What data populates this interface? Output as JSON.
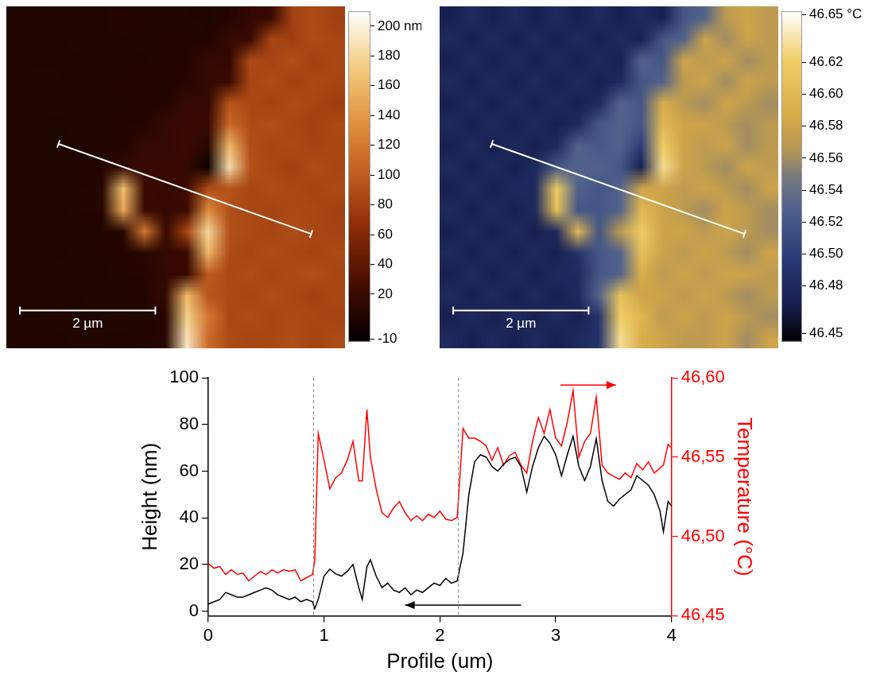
{
  "chart_data": [
    {
      "type": "heatmap",
      "color": "afmhot",
      "tick_labels": false,
      "xlim": [
        0,
        5
      ],
      "ylim": [
        0,
        5.17
      ],
      "colorbar_range": [
        -12,
        210
      ],
      "colorbar_ticks": [
        {
          "value": 200,
          "label": "200 nm"
        },
        180,
        160,
        140,
        120,
        100,
        80,
        60,
        40,
        20,
        -10
      ],
      "profile_line": {
        "x": [
          0.77,
          4.5
        ],
        "y": [
          2.08,
          3.44
        ]
      },
      "scale_bar": {
        "label": "2 µm",
        "x": [
          0.2,
          2.2
        ],
        "y": 4.6
      },
      "cells": [
        [
          6,
          5,
          7,
          6,
          5,
          8,
          6,
          7,
          6,
          5,
          8,
          16,
          18,
          82,
          88,
          80
        ],
        [
          5,
          6,
          5,
          7,
          6,
          5,
          7,
          6,
          8,
          6,
          17,
          19,
          85,
          78,
          90,
          84
        ],
        [
          6,
          5,
          6,
          5,
          7,
          6,
          5,
          8,
          7,
          18,
          16,
          88,
          82,
          92,
          79,
          86
        ],
        [
          5,
          7,
          6,
          5,
          6,
          7,
          8,
          6,
          9,
          17,
          20,
          84,
          90,
          80,
          87,
          83
        ],
        [
          6,
          5,
          7,
          6,
          5,
          6,
          7,
          8,
          18,
          16,
          95,
          86,
          81,
          89,
          84,
          78
        ],
        [
          5,
          6,
          5,
          7,
          6,
          8,
          7,
          17,
          19,
          18,
          110,
          88,
          92,
          85,
          80,
          87
        ],
        [
          6,
          5,
          6,
          5,
          7,
          6,
          18,
          16,
          20,
          10,
          160,
          90,
          84,
          88,
          82,
          86
        ],
        [
          5,
          6,
          7,
          6,
          8,
          16,
          18,
          20,
          17,
          -5,
          185,
          92,
          86,
          80,
          90,
          84
        ],
        [
          6,
          5,
          6,
          7,
          9,
          165,
          20,
          18,
          22,
          88,
          95,
          84,
          90,
          86,
          82,
          88
        ],
        [
          5,
          6,
          5,
          7,
          8,
          150,
          19,
          17,
          20,
          130,
          90,
          86,
          82,
          88,
          85,
          80
        ],
        [
          6,
          5,
          6,
          5,
          7,
          9,
          120,
          18,
          85,
          180,
          92,
          88,
          84,
          90,
          86,
          82
        ],
        [
          5,
          6,
          5,
          7,
          6,
          8,
          10,
          17,
          20,
          160,
          88,
          84,
          90,
          86,
          82,
          88
        ],
        [
          6,
          5,
          7,
          6,
          5,
          7,
          8,
          16,
          18,
          100,
          86,
          90,
          84,
          88,
          92,
          84
        ],
        [
          5,
          6,
          5,
          6,
          7,
          6,
          8,
          18,
          160,
          95,
          88,
          84,
          90,
          86,
          80,
          86
        ],
        [
          6,
          5,
          7,
          5,
          6,
          7,
          6,
          9,
          175,
          120,
          86,
          90,
          84,
          88,
          85,
          82
        ],
        [
          5,
          6,
          5,
          7,
          6,
          5,
          7,
          10,
          190,
          110,
          88,
          84,
          86,
          90,
          82,
          88
        ]
      ]
    },
    {
      "type": "heatmap",
      "color": "navy-gold",
      "tick_labels": false,
      "xlim": [
        0,
        5
      ],
      "ylim": [
        0,
        5.17
      ],
      "colorbar_range": [
        46.445,
        46.652
      ],
      "colorbar_ticks": [
        {
          "value": 46.65,
          "label": "46.65 °C"
        },
        46.62,
        {
          "value": 46.6,
          "label": "46.60"
        },
        46.58,
        46.56,
        46.54,
        46.52,
        {
          "value": 46.5,
          "label": "46.50"
        },
        46.48,
        46.45
      ],
      "profile_line": {
        "x": [
          0.77,
          4.5
        ],
        "y": [
          2.08,
          3.44
        ]
      },
      "scale_bar": {
        "label": "2 µm",
        "x": [
          0.2,
          2.2
        ],
        "y": 4.6
      },
      "cells": [
        [
          46.47,
          46.48,
          46.47,
          46.48,
          46.47,
          46.48,
          46.47,
          46.48,
          46.47,
          46.48,
          46.47,
          46.52,
          46.53,
          46.57,
          46.58,
          46.57
        ],
        [
          46.48,
          46.47,
          46.48,
          46.47,
          46.48,
          46.47,
          46.48,
          46.47,
          46.48,
          46.47,
          46.52,
          46.53,
          46.58,
          46.56,
          46.58,
          46.57
        ],
        [
          46.47,
          46.48,
          46.47,
          46.48,
          46.47,
          46.48,
          46.47,
          46.48,
          46.47,
          46.53,
          46.52,
          46.58,
          46.57,
          46.58,
          46.56,
          46.57
        ],
        [
          46.48,
          46.47,
          46.48,
          46.47,
          46.48,
          46.47,
          46.48,
          46.47,
          46.48,
          46.52,
          46.53,
          46.57,
          46.58,
          46.56,
          46.58,
          46.57
        ],
        [
          46.47,
          46.48,
          46.47,
          46.48,
          46.47,
          46.48,
          46.47,
          46.48,
          46.53,
          46.52,
          46.59,
          46.57,
          46.56,
          46.58,
          46.57,
          46.56
        ],
        [
          46.48,
          46.47,
          46.48,
          46.47,
          46.48,
          46.47,
          46.48,
          46.52,
          46.53,
          46.52,
          46.6,
          46.58,
          46.58,
          46.57,
          46.56,
          46.57
        ],
        [
          46.47,
          46.48,
          46.47,
          46.48,
          46.47,
          46.48,
          46.53,
          46.52,
          46.53,
          46.5,
          46.62,
          46.58,
          46.57,
          46.58,
          46.56,
          46.57
        ],
        [
          46.48,
          46.47,
          46.48,
          46.47,
          46.48,
          46.52,
          46.53,
          46.53,
          46.52,
          46.47,
          46.63,
          46.58,
          46.57,
          46.56,
          46.58,
          46.57
        ],
        [
          46.47,
          46.48,
          46.47,
          46.48,
          46.48,
          46.62,
          46.53,
          46.52,
          46.53,
          46.58,
          46.58,
          46.57,
          46.58,
          46.57,
          46.56,
          46.58
        ],
        [
          46.48,
          46.47,
          46.48,
          46.47,
          46.48,
          46.61,
          46.52,
          46.52,
          46.53,
          46.6,
          46.58,
          46.57,
          46.56,
          46.58,
          46.57,
          46.56
        ],
        [
          46.47,
          46.48,
          46.47,
          46.48,
          46.47,
          46.48,
          46.6,
          46.52,
          46.57,
          46.62,
          46.58,
          46.58,
          46.57,
          46.58,
          46.57,
          46.56
        ],
        [
          46.48,
          46.47,
          46.48,
          46.47,
          46.48,
          46.47,
          46.49,
          46.52,
          46.53,
          46.61,
          46.58,
          46.57,
          46.58,
          46.57,
          46.56,
          46.58
        ],
        [
          46.47,
          46.48,
          46.47,
          46.48,
          46.47,
          46.48,
          46.48,
          46.52,
          46.53,
          46.59,
          46.57,
          46.58,
          46.57,
          46.58,
          46.58,
          46.57
        ],
        [
          46.48,
          46.47,
          46.48,
          46.47,
          46.48,
          46.47,
          46.48,
          46.53,
          46.61,
          46.58,
          46.58,
          46.57,
          46.58,
          46.57,
          46.56,
          46.57
        ],
        [
          46.47,
          46.48,
          46.47,
          46.48,
          46.47,
          46.48,
          46.47,
          46.49,
          46.62,
          46.6,
          46.57,
          46.58,
          46.57,
          46.58,
          46.57,
          46.56
        ],
        [
          46.48,
          46.47,
          46.48,
          46.47,
          46.48,
          46.47,
          46.48,
          46.49,
          46.63,
          46.59,
          46.58,
          46.57,
          46.57,
          46.58,
          46.56,
          46.58
        ]
      ]
    },
    {
      "type": "line",
      "grid": false,
      "xlabel": "Profile (um)",
      "ylabel": "Height (nm)",
      "y2label": "Temperature (°C)",
      "xlim": [
        0,
        4
      ],
      "xticks": [
        0,
        1,
        2,
        3,
        4
      ],
      "ylim": [
        -2,
        100
      ],
      "yticks": [
        0,
        20,
        40,
        60,
        80,
        100
      ],
      "y2lim": [
        46.45,
        46.6
      ],
      "y2ticks": [
        {
          "value": 46.45,
          "label": "46,45"
        },
        {
          "value": 46.5,
          "label": "46,50"
        },
        {
          "value": 46.55,
          "label": "46,55"
        },
        {
          "value": 46.6,
          "label": "46,60"
        }
      ],
      "vertical_lines": [
        0.91,
        2.16
      ],
      "x": [
        0,
        0.05,
        0.1,
        0.15,
        0.2,
        0.25,
        0.3,
        0.35,
        0.4,
        0.45,
        0.5,
        0.55,
        0.6,
        0.65,
        0.7,
        0.75,
        0.8,
        0.85,
        0.9,
        0.92,
        0.95,
        1,
        1.05,
        1.1,
        1.15,
        1.2,
        1.25,
        1.3,
        1.33,
        1.37,
        1.4,
        1.45,
        1.5,
        1.55,
        1.6,
        1.65,
        1.7,
        1.75,
        1.8,
        1.85,
        1.9,
        1.95,
        2,
        2.05,
        2.1,
        2.15,
        2.2,
        2.25,
        2.3,
        2.35,
        2.4,
        2.45,
        2.5,
        2.55,
        2.6,
        2.65,
        2.7,
        2.75,
        2.8,
        2.85,
        2.9,
        2.95,
        3,
        3.05,
        3.1,
        3.15,
        3.2,
        3.25,
        3.3,
        3.35,
        3.4,
        3.45,
        3.5,
        3.55,
        3.6,
        3.65,
        3.7,
        3.75,
        3.8,
        3.85,
        3.9,
        3.93,
        3.97,
        4
      ],
      "series": [
        {
          "color": "#000000",
          "axis": "y",
          "values": [
            3,
            4,
            5,
            8,
            7,
            6,
            6,
            7,
            8,
            9,
            10,
            9,
            7,
            6,
            5,
            6,
            4,
            5,
            4,
            1,
            5,
            15,
            18,
            16,
            15,
            17,
            20,
            10,
            5,
            19,
            22,
            15,
            10,
            12,
            9,
            8,
            10,
            7,
            9,
            8,
            10,
            12,
            11,
            14,
            12,
            13,
            25,
            50,
            64,
            67,
            66,
            62,
            60,
            63,
            65,
            66,
            62,
            51,
            62,
            70,
            75,
            72,
            67,
            58,
            67,
            75,
            62,
            56,
            62,
            74,
            56,
            47,
            45,
            48,
            50,
            52,
            58,
            56,
            54,
            50,
            43,
            34,
            47,
            45
          ]
        },
        {
          "color": "#ff0000",
          "axis": "y2",
          "values": [
            46.483,
            46.48,
            46.481,
            46.476,
            46.479,
            46.476,
            46.477,
            46.472,
            46.475,
            46.478,
            46.476,
            46.479,
            46.477,
            46.479,
            46.478,
            46.479,
            46.472,
            46.474,
            46.476,
            46.485,
            46.565,
            46.548,
            46.53,
            46.537,
            46.54,
            46.548,
            46.56,
            46.535,
            46.535,
            46.58,
            46.55,
            46.53,
            46.515,
            46.512,
            46.518,
            46.522,
            46.515,
            46.51,
            46.513,
            46.51,
            46.514,
            46.512,
            46.516,
            46.511,
            46.51,
            46.512,
            46.568,
            46.562,
            46.562,
            46.56,
            46.557,
            46.548,
            46.556,
            46.545,
            46.551,
            46.553,
            46.545,
            46.54,
            46.56,
            46.575,
            46.565,
            46.58,
            46.562,
            46.557,
            46.572,
            46.592,
            46.55,
            46.56,
            46.565,
            46.588,
            46.545,
            46.54,
            46.538,
            46.536,
            46.54,
            46.537,
            46.546,
            46.542,
            46.547,
            46.54,
            46.543,
            46.545,
            46.558,
            46.556
          ]
        }
      ]
    }
  ]
}
